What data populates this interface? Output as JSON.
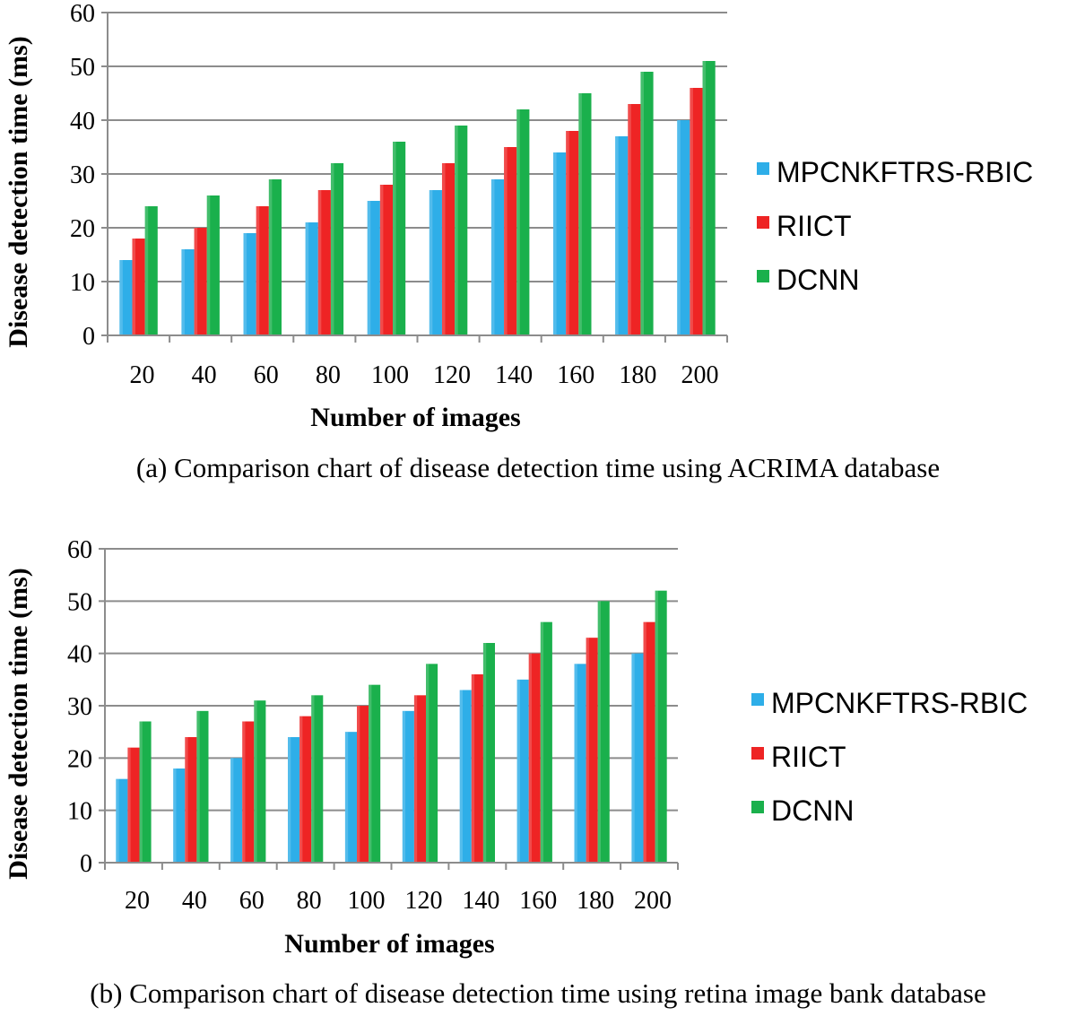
{
  "colors": {
    "MPCNKFTRS-RBIC": "#2eaee8",
    "RIICT": "#ee2424",
    "DCNN": "#1ab04c",
    "grid": "#8c8c8c"
  },
  "chart_data": [
    {
      "type": "bar",
      "caption": "(a) Comparison chart of disease detection time using ACRIMA database",
      "xlabel": "Number of images",
      "ylabel": "Disease detection time (ms)",
      "ylim": [
        0,
        60
      ],
      "yticks": [
        "0",
        "10",
        "20",
        "30",
        "40",
        "50",
        "60"
      ],
      "categories": [
        "20",
        "40",
        "60",
        "80",
        "100",
        "120",
        "140",
        "160",
        "180",
        "200"
      ],
      "series": [
        {
          "name": "MPCNKFTRS-RBIC",
          "values": [
            14,
            16,
            19,
            21,
            25,
            27,
            29,
            34,
            37,
            40
          ]
        },
        {
          "name": "RIICT",
          "values": [
            18,
            20,
            24,
            27,
            28,
            32,
            35,
            38,
            43,
            46
          ]
        },
        {
          "name": "DCNN",
          "values": [
            24,
            26,
            29,
            32,
            36,
            39,
            42,
            45,
            49,
            51
          ]
        }
      ],
      "legend_position": "right"
    },
    {
      "type": "bar",
      "caption": "(b) Comparison chart of disease detection time using retina image bank database",
      "xlabel": "Number of images",
      "ylabel": "Disease detection time (ms)",
      "ylim": [
        0,
        60
      ],
      "yticks": [
        "0",
        "10",
        "20",
        "30",
        "40",
        "50",
        "60"
      ],
      "categories": [
        "20",
        "40",
        "60",
        "80",
        "100",
        "120",
        "140",
        "160",
        "180",
        "200"
      ],
      "series": [
        {
          "name": "MPCNKFTRS-RBIC",
          "values": [
            16,
            18,
            20,
            24,
            25,
            29,
            33,
            35,
            38,
            40
          ]
        },
        {
          "name": "RIICT",
          "values": [
            22,
            24,
            27,
            28,
            30,
            32,
            36,
            40,
            43,
            46
          ]
        },
        {
          "name": "DCNN",
          "values": [
            27,
            29,
            31,
            32,
            34,
            38,
            42,
            46,
            50,
            52
          ]
        }
      ],
      "legend_position": "right"
    }
  ]
}
